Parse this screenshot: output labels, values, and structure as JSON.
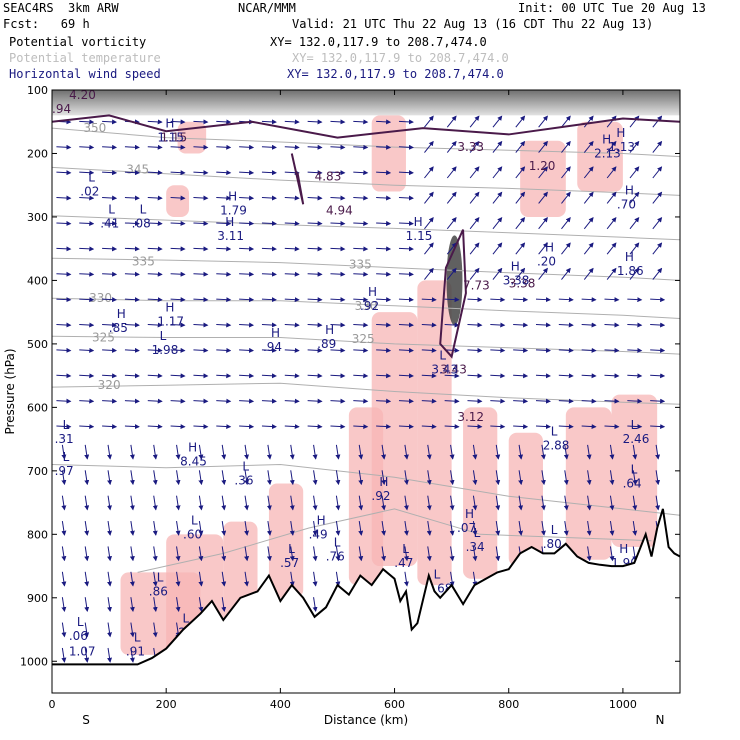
{
  "header": {
    "model": "SEAC4RS  3km ARW",
    "center": "NCAR/MMM",
    "init": "Init: 00 UTC Tue 20 Aug 13",
    "fcst": "Fcst:   69 h",
    "valid": "Valid: 21 UTC Thu 22 Aug 13 (16 CDT Thu 22 Aug 13)",
    "fields": [
      {
        "name": "Potential vorticity",
        "xy": "XY= 132.0,117.9 to 208.7,474.0",
        "color": "#000000"
      },
      {
        "name": "Potential temperature",
        "xy": "XY= 132.0,117.9 to 208.7,474.0",
        "color": "#bdbdbd"
      },
      {
        "name": "Horizontal wind speed",
        "xy": "XY= 132.0,117.9 to 208.7,474.0",
        "color": "#1a1a80"
      }
    ]
  },
  "colors": {
    "pv_fill": "#f7b6b6",
    "pv_contour": "#4a1a4a",
    "theta": "#b0b0b0",
    "wind": "#1a1a80",
    "terrain": "#000000"
  },
  "chart_data": {
    "type": "cross-section",
    "xlabel": "Distance (km)",
    "ylabel": "Pressure (hPa)",
    "xlim": [
      0,
      1100
    ],
    "ylim": [
      1050,
      100
    ],
    "x_ticks": [
      0,
      200,
      400,
      600,
      800,
      1000
    ],
    "y_ticks": [
      100,
      200,
      300,
      400,
      500,
      600,
      700,
      800,
      900,
      1000
    ],
    "left_end_label": "S",
    "right_end_label": "N",
    "terrain": [
      [
        0,
        1005
      ],
      [
        100,
        1005
      ],
      [
        150,
        1005
      ],
      [
        175,
        995
      ],
      [
        200,
        980
      ],
      [
        230,
        950
      ],
      [
        260,
        925
      ],
      [
        280,
        905
      ],
      [
        300,
        935
      ],
      [
        330,
        900
      ],
      [
        360,
        890
      ],
      [
        380,
        865
      ],
      [
        400,
        905
      ],
      [
        420,
        880
      ],
      [
        440,
        900
      ],
      [
        460,
        930
      ],
      [
        480,
        915
      ],
      [
        500,
        880
      ],
      [
        520,
        895
      ],
      [
        540,
        865
      ],
      [
        560,
        880
      ],
      [
        580,
        855
      ],
      [
        600,
        870
      ],
      [
        610,
        905
      ],
      [
        620,
        890
      ],
      [
        630,
        950
      ],
      [
        640,
        940
      ],
      [
        660,
        865
      ],
      [
        670,
        890
      ],
      [
        680,
        900
      ],
      [
        700,
        880
      ],
      [
        720,
        910
      ],
      [
        740,
        880
      ],
      [
        760,
        870
      ],
      [
        780,
        860
      ],
      [
        800,
        855
      ],
      [
        820,
        830
      ],
      [
        840,
        820
      ],
      [
        860,
        830
      ],
      [
        880,
        830
      ],
      [
        900,
        815
      ],
      [
        920,
        835
      ],
      [
        940,
        845
      ],
      [
        960,
        848
      ],
      [
        980,
        850
      ],
      [
        1000,
        850
      ],
      [
        1020,
        845
      ],
      [
        1040,
        800
      ],
      [
        1050,
        835
      ],
      [
        1060,
        790
      ],
      [
        1070,
        760
      ],
      [
        1080,
        820
      ],
      [
        1090,
        830
      ],
      [
        1100,
        835
      ]
    ],
    "theta_contours": [
      {
        "label": "350",
        "points": [
          [
            0,
            160
          ],
          [
            200,
            175
          ],
          [
            400,
            182
          ],
          [
            600,
            190
          ],
          [
            800,
            195
          ],
          [
            1000,
            200
          ],
          [
            1100,
            205
          ]
        ]
      },
      {
        "label": "345",
        "points": [
          [
            0,
            222
          ],
          [
            200,
            232
          ],
          [
            400,
            242
          ],
          [
            600,
            250
          ],
          [
            800,
            255
          ],
          [
            1000,
            262
          ],
          [
            1100,
            266
          ]
        ]
      },
      {
        "label": "340",
        "points": [
          [
            0,
            298
          ],
          [
            200,
            305
          ],
          [
            400,
            312
          ],
          [
            600,
            318
          ],
          [
            800,
            325
          ],
          [
            1000,
            332
          ],
          [
            1100,
            336
          ]
        ]
      },
      {
        "label": "335",
        "points": [
          [
            0,
            365
          ],
          [
            200,
            368
          ],
          [
            400,
            372
          ],
          [
            600,
            380
          ],
          [
            800,
            388
          ],
          [
            1000,
            395
          ],
          [
            1100,
            400
          ]
        ]
      },
      {
        "label": "330",
        "points": [
          [
            0,
            428
          ],
          [
            200,
            432
          ],
          [
            400,
            432
          ],
          [
            600,
            440
          ],
          [
            800,
            448
          ],
          [
            1000,
            455
          ],
          [
            1100,
            460
          ]
        ]
      },
      {
        "label": "325",
        "points": [
          [
            0,
            488
          ],
          [
            200,
            490
          ],
          [
            400,
            490
          ],
          [
            600,
            500
          ],
          [
            800,
            506
          ],
          [
            1000,
            512
          ],
          [
            1100,
            516
          ]
        ]
      },
      {
        "label": "320",
        "points": [
          [
            0,
            568
          ],
          [
            200,
            565
          ],
          [
            400,
            562
          ],
          [
            600,
            575
          ],
          [
            800,
            585
          ],
          [
            1000,
            592
          ],
          [
            1100,
            595
          ]
        ]
      },
      {
        "label": "",
        "points": [
          [
            0,
            690
          ],
          [
            200,
            695
          ],
          [
            400,
            690
          ],
          [
            600,
            710
          ],
          [
            800,
            740
          ],
          [
            1000,
            760
          ],
          [
            1100,
            770
          ]
        ]
      },
      {
        "label": "",
        "points": [
          [
            150,
            860
          ],
          [
            300,
            830
          ],
          [
            450,
            790
          ],
          [
            600,
            760
          ],
          [
            750,
            800
          ],
          [
            900,
            805
          ],
          [
            1050,
            810
          ]
        ]
      }
    ],
    "theta_label_positions": [
      {
        "text": "350",
        "x": 55,
        "p": 160
      },
      {
        "text": "345",
        "x": 130,
        "p": 225
      },
      {
        "text": "335",
        "x": 140,
        "p": 370
      },
      {
        "text": "330",
        "x": 65,
        "p": 428
      },
      {
        "text": "325",
        "x": 70,
        "p": 490
      },
      {
        "text": "320",
        "x": 80,
        "p": 565
      },
      {
        "text": "335",
        "x": 520,
        "p": 375
      },
      {
        "text": "330",
        "x": 530,
        "p": 440
      },
      {
        "text": "325",
        "x": 525,
        "p": 492
      }
    ],
    "pv_contour_labels": [
      {
        "text": "4.20",
        "x": 30,
        "p": 108
      },
      {
        "text": ".94",
        "x": 0,
        "p": 130
      },
      {
        "text": "1.15",
        "x": 190,
        "p": 175
      },
      {
        "text": "4.83",
        "x": 460,
        "p": 236
      },
      {
        "text": "4.94",
        "x": 480,
        "p": 290
      },
      {
        "text": "3.33",
        "x": 710,
        "p": 190
      },
      {
        "text": "7.73",
        "x": 720,
        "p": 408
      },
      {
        "text": "3.38",
        "x": 800,
        "p": 405
      },
      {
        "text": "3.43",
        "x": 680,
        "p": 540
      },
      {
        "text": "3.12",
        "x": 710,
        "p": 615
      },
      {
        "text": "1.20",
        "x": 835,
        "p": 220
      }
    ],
    "hl_labels": [
      {
        "letter": "L",
        "value": ".02",
        "x": 60,
        "p": 260
      },
      {
        "letter": "L",
        "value": ".41",
        "x": 95,
        "p": 310
      },
      {
        "letter": "L",
        "value": ".08",
        "x": 150,
        "p": 310
      },
      {
        "letter": "H",
        "value": "1.15",
        "x": 195,
        "p": 175
      },
      {
        "letter": "H",
        "value": "1.79",
        "x": 305,
        "p": 290
      },
      {
        "letter": "H",
        "value": "3.11",
        "x": 300,
        "p": 330
      },
      {
        "letter": "H",
        "value": ".85",
        "x": 110,
        "p": 475
      },
      {
        "letter": "H",
        "value": "1.17",
        "x": 195,
        "p": 465
      },
      {
        "letter": "L",
        "value": "1.98",
        "x": 185,
        "p": 510
      },
      {
        "letter": "H",
        "value": ".94",
        "x": 380,
        "p": 505
      },
      {
        "letter": "H",
        "value": ".89",
        "x": 475,
        "p": 500
      },
      {
        "letter": "H",
        "value": ".92",
        "x": 550,
        "p": 440
      },
      {
        "letter": "H",
        "value": "1.15",
        "x": 630,
        "p": 330
      },
      {
        "letter": "H",
        "value": "3.38",
        "x": 800,
        "p": 400
      },
      {
        "letter": "L",
        "value": "3.43",
        "x": 675,
        "p": 540
      },
      {
        "letter": "H",
        "value": "8.45",
        "x": 235,
        "p": 685
      },
      {
        "letter": "L",
        "value": ".36",
        "x": 330,
        "p": 715
      },
      {
        "letter": "H",
        "value": ".92",
        "x": 570,
        "p": 740
      },
      {
        "letter": "L",
        "value": ".60",
        "x": 240,
        "p": 800
      },
      {
        "letter": "H",
        "value": ".49",
        "x": 460,
        "p": 800
      },
      {
        "letter": "L",
        "value": ".57",
        "x": 410,
        "p": 845
      },
      {
        "letter": "L",
        "value": ".76",
        "x": 490,
        "p": 835
      },
      {
        "letter": "L",
        "value": ".47",
        "x": 610,
        "p": 845
      },
      {
        "letter": "H",
        "value": ".07",
        "x": 720,
        "p": 790
      },
      {
        "letter": "L",
        "value": ".34",
        "x": 735,
        "p": 820
      },
      {
        "letter": "L",
        "value": "2.88",
        "x": 870,
        "p": 660
      },
      {
        "letter": "L",
        "value": "2.46",
        "x": 1010,
        "p": 650
      },
      {
        "letter": "L",
        "value": ".64",
        "x": 1010,
        "p": 720
      },
      {
        "letter": "L",
        "value": ".80",
        "x": 870,
        "p": 815
      },
      {
        "letter": "H",
        "value": "1.90",
        "x": 990,
        "p": 845
      },
      {
        "letter": "L",
        "value": ".86",
        "x": 180,
        "p": 890
      },
      {
        "letter": "L",
        "value": ".26",
        "x": 225,
        "p": 955
      },
      {
        "letter": "L",
        "value": ".91",
        "x": 140,
        "p": 985
      },
      {
        "letter": "L",
        "value": ".06",
        "x": 40,
        "p": 960
      },
      {
        "letter": "",
        "value": "1.07",
        "x": 40,
        "p": 985
      },
      {
        "letter": "H",
        "value": ".46",
        "x": 475,
        "p": 975
      },
      {
        "letter": "L",
        "value": "1.68",
        "x": 665,
        "p": 885
      },
      {
        "letter": "L",
        "value": ".31",
        "x": 15,
        "p": 650
      },
      {
        "letter": "L",
        "value": ".97",
        "x": 15,
        "p": 700
      },
      {
        "letter": "H",
        "value": "1.86",
        "x": 1000,
        "p": 385
      },
      {
        "letter": "H",
        "value": ".20",
        "x": 860,
        "p": 370
      },
      {
        "letter": "H",
        "value": ".70",
        "x": 1000,
        "p": 280
      },
      {
        "letter": "H",
        "value": "1.13",
        "x": 985,
        "p": 190
      },
      {
        "letter": "H",
        "value": "2.13",
        "x": 960,
        "p": 200
      },
      {
        "letter": "",
        "value": "1.3",
        "x": 800,
        "p": 910
      },
      {
        "letter": "",
        "value": "1.13",
        "x": 710,
        "p": 940
      }
    ]
  }
}
